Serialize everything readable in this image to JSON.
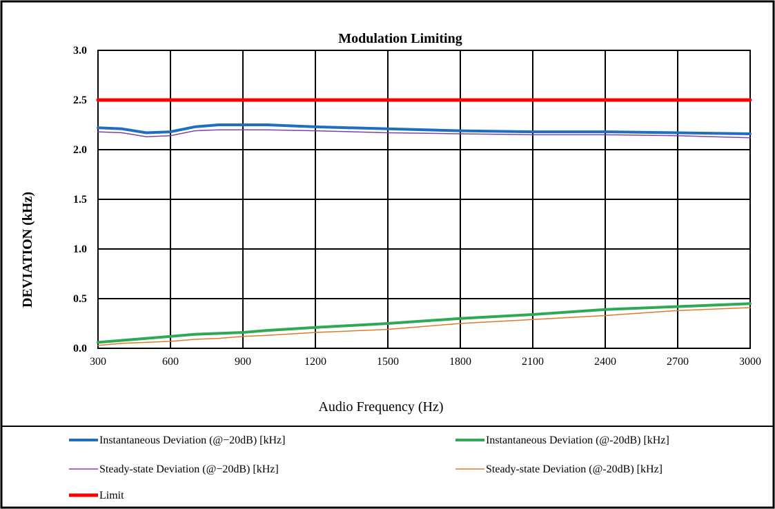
{
  "chart_data": {
    "type": "line",
    "title": "Modulation Limiting",
    "xlabel": "Audio Frequency (Hz)",
    "ylabel": "DEVIATION (kHz)",
    "xlim": [
      300,
      3000
    ],
    "ylim": [
      0,
      3.0
    ],
    "x_ticks": [
      "300",
      "600",
      "900",
      "1200",
      "1500",
      "1800",
      "2100",
      "2400",
      "2700",
      "3000"
    ],
    "y_ticks": [
      "0.0",
      "0.5",
      "1.0",
      "1.5",
      "2.0",
      "2.5",
      "3.0"
    ],
    "grid": true,
    "legend_position": "bottom",
    "x": [
      300,
      400,
      500,
      600,
      700,
      800,
      900,
      1000,
      1200,
      1500,
      1800,
      2100,
      2400,
      2700,
      3000
    ],
    "series": [
      {
        "name": "Instantaneous Deviation (@−20dB) [kHz]",
        "color": "#1f6fbf",
        "values": [
          2.22,
          2.21,
          2.17,
          2.18,
          2.23,
          2.25,
          2.25,
          2.25,
          2.23,
          2.21,
          2.19,
          2.18,
          2.18,
          2.17,
          2.16
        ]
      },
      {
        "name": "Instantaneous Deviation (@-20dB) [kHz]",
        "color": "#2eaa56",
        "values": [
          0.06,
          0.08,
          0.1,
          0.12,
          0.14,
          0.15,
          0.16,
          0.18,
          0.21,
          0.25,
          0.3,
          0.34,
          0.39,
          0.42,
          0.45
        ]
      },
      {
        "name": "Steady-state Deviation (@−20dB) [kHz]",
        "color": "#7a3fb0",
        "values": [
          2.18,
          2.17,
          2.13,
          2.14,
          2.19,
          2.2,
          2.2,
          2.2,
          2.19,
          2.17,
          2.16,
          2.15,
          2.15,
          2.14,
          2.12
        ]
      },
      {
        "name": "Steady-state Deviation (@-20dB) [kHz]",
        "color": "#e07a26",
        "values": [
          0.03,
          0.05,
          0.06,
          0.07,
          0.09,
          0.1,
          0.12,
          0.13,
          0.16,
          0.19,
          0.25,
          0.29,
          0.33,
          0.38,
          0.41
        ]
      },
      {
        "name": "Limit",
        "color": "#ff0000",
        "values": [
          2.5,
          2.5,
          2.5,
          2.5,
          2.5,
          2.5,
          2.5,
          2.5,
          2.5,
          2.5,
          2.5,
          2.5,
          2.5,
          2.5,
          2.5
        ]
      }
    ]
  }
}
